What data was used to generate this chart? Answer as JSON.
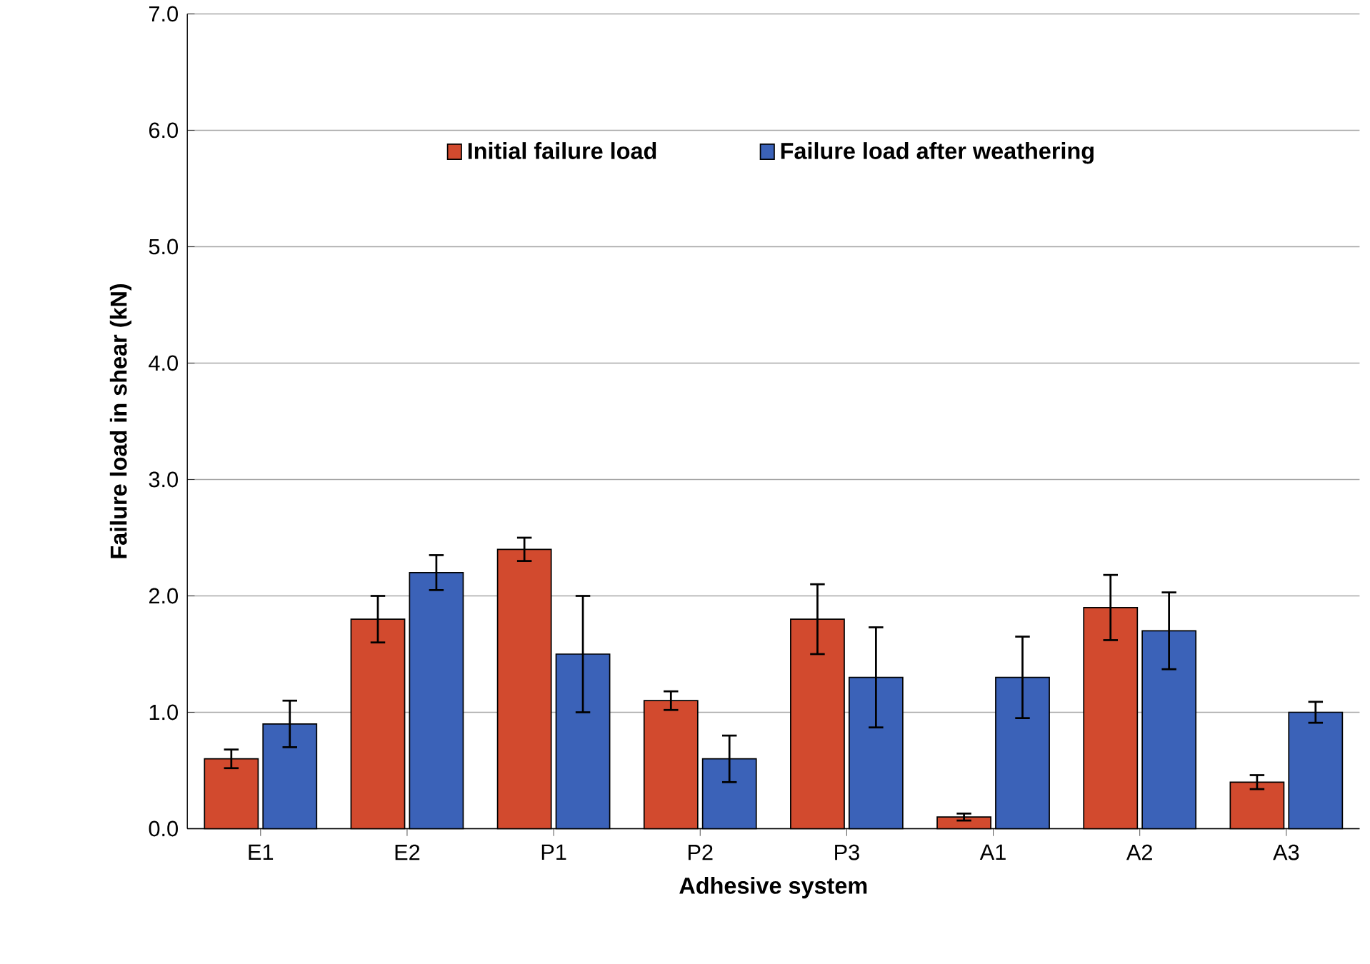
{
  "chart_data": {
    "type": "bar",
    "xlabel": "Adhesive system",
    "ylabel": "Failure load in shear (kN)",
    "categories": [
      "E1",
      "E2",
      "P1",
      "P2",
      "P3",
      "A1",
      "A2",
      "A3"
    ],
    "series": [
      {
        "name": "Initial failure load",
        "color": "#d24a2e",
        "values": [
          0.6,
          1.8,
          2.4,
          1.1,
          1.8,
          0.1,
          1.9,
          0.4
        ],
        "errors": [
          0.08,
          0.2,
          0.1,
          0.08,
          0.3,
          0.03,
          0.28,
          0.06
        ]
      },
      {
        "name": "Failure load after weathering",
        "color": "#3b62b8",
        "values": [
          0.9,
          2.2,
          1.5,
          0.6,
          1.3,
          1.3,
          1.7,
          1.0
        ],
        "errors": [
          0.2,
          0.15,
          0.5,
          0.2,
          0.43,
          0.35,
          0.33,
          0.09
        ]
      }
    ],
    "ylim": [
      0,
      7
    ],
    "yticks": [
      {
        "value": 0,
        "label": "0.0"
      },
      {
        "value": 1,
        "label": "1.0"
      },
      {
        "value": 2,
        "label": "2.0"
      },
      {
        "value": 3,
        "label": "3.0"
      },
      {
        "value": 4,
        "label": "4.0"
      },
      {
        "value": 5,
        "label": "5.0"
      },
      {
        "value": 6,
        "label": "6.0"
      },
      {
        "value": 7,
        "label": "7.0"
      }
    ],
    "grid": "y",
    "legend": "top"
  }
}
